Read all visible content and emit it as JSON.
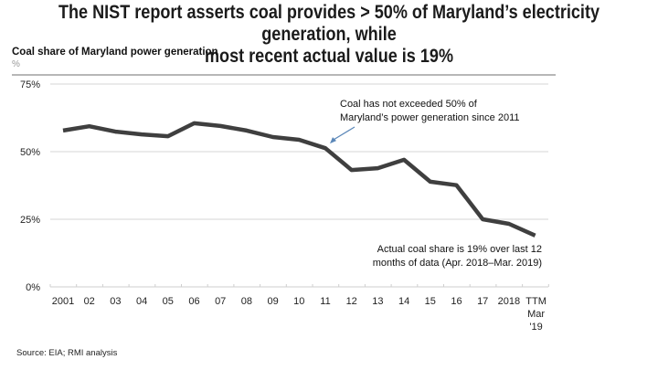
{
  "title_line1": "The NIST report asserts coal provides > 50% of Maryland’s electricity generation, while",
  "title_line2": "most recent actual value is 19%",
  "source": "Source: EIA; RMI analysis",
  "chart_data": {
    "type": "line",
    "title": "Coal share of Maryland power generation",
    "ylabel": "%",
    "xlabel": "",
    "ylim": [
      0,
      75
    ],
    "yticks": [
      0,
      25,
      50,
      75
    ],
    "ytick_labels": [
      "0%",
      "25%",
      "50%",
      "75%"
    ],
    "grid": true,
    "categories": [
      "2001",
      "02",
      "03",
      "04",
      "05",
      "06",
      "07",
      "08",
      "09",
      "10",
      "11",
      "12",
      "13",
      "14",
      "15",
      "16",
      "17",
      "2018",
      "TTM Mar '19"
    ],
    "category_label_lines": [
      [
        "2001"
      ],
      [
        "02"
      ],
      [
        "03"
      ],
      [
        "04"
      ],
      [
        "05"
      ],
      [
        "06"
      ],
      [
        "07"
      ],
      [
        "08"
      ],
      [
        "09"
      ],
      [
        "10"
      ],
      [
        "11"
      ],
      [
        "12"
      ],
      [
        "13"
      ],
      [
        "14"
      ],
      [
        "15"
      ],
      [
        "16"
      ],
      [
        "17"
      ],
      [
        "2018"
      ],
      [
        "TTM",
        "Mar",
        "'19"
      ]
    ],
    "series": [
      {
        "name": "Coal share",
        "color": "#3f3f3f",
        "values": [
          57.8,
          59.4,
          57.4,
          56.4,
          55.7,
          60.5,
          59.5,
          57.8,
          55.4,
          54.4,
          51.3,
          43.2,
          43.9,
          47.0,
          38.9,
          37.6,
          25.0,
          23.3,
          19.0
        ]
      }
    ],
    "annotations": [
      {
        "text_lines": [
          "Coal has not exceeded 50% of",
          "Maryland’s power generation since 2011"
        ],
        "arrow_to_category": "11",
        "arrow_color": "#5b87b8"
      },
      {
        "text_lines": [
          "Actual coal share is 19% over last 12",
          "months of data (Apr. 2018–Mar. 2019)"
        ],
        "near_category": "TTM Mar '19"
      }
    ]
  }
}
